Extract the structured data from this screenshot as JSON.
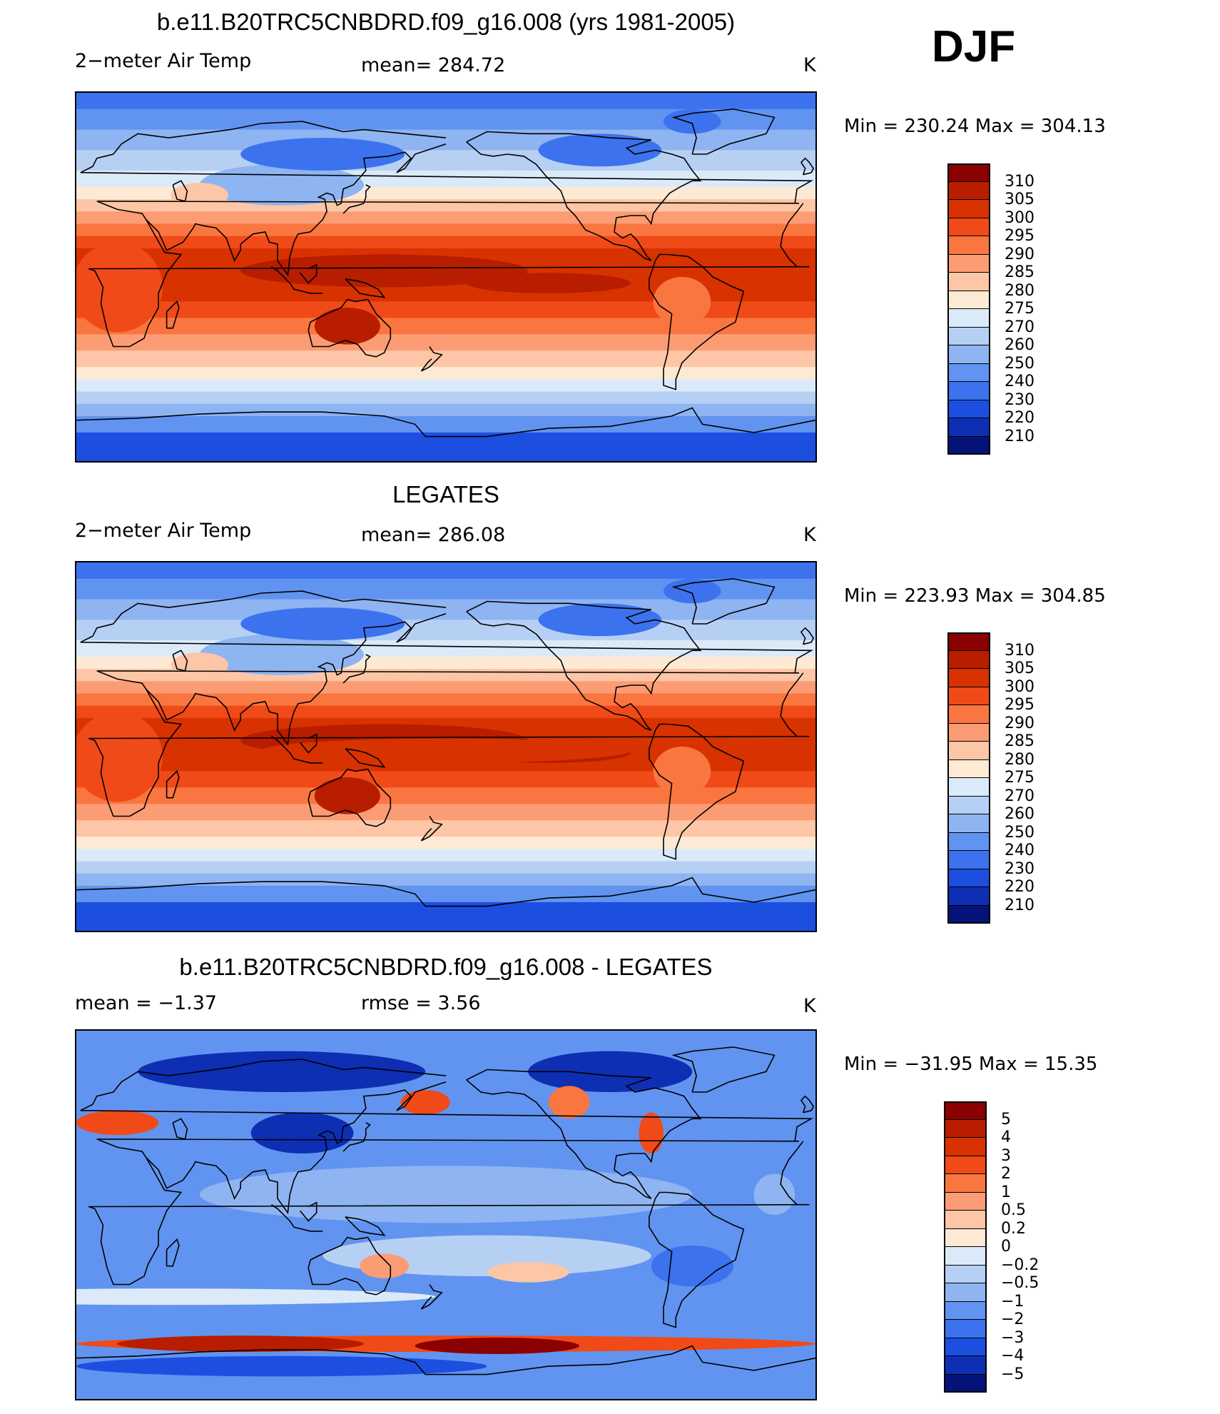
{
  "season_label": "DJF",
  "panels": [
    {
      "title": "b.e11.B20TRC5CNBDRD.f09_g16.008 (yrs 1981-2005)",
      "left_label": "2−meter Air Temp",
      "center_label": "mean=  284.72",
      "units": "K",
      "minmax": "Min  =  230.24  Max  =  304.13",
      "colors": [
        "#8b0000",
        "#b81d00",
        "#d83200",
        "#f04a18",
        "#fa7640",
        "#fc9c74",
        "#fdc6a6",
        "#fee9d4",
        "#dbeaf9",
        "#b6d0f4",
        "#8eb4f2",
        "#6194f0",
        "#3c72ee",
        "#1c4fe0",
        "#0e2fb4",
        "#04127a"
      ],
      "labels": [
        "310",
        "305",
        "300",
        "295",
        "290",
        "285",
        "280",
        "275",
        "270",
        "260",
        "250",
        "240",
        "230",
        "220",
        "210"
      ],
      "variant": "model"
    },
    {
      "title": "LEGATES",
      "left_label": "2−meter Air Temp",
      "center_label": "mean=  286.08",
      "units": "K",
      "minmax": "Min  =  223.93  Max  =  304.85",
      "colors": [
        "#8b0000",
        "#b81d00",
        "#d83200",
        "#f04a18",
        "#fa7640",
        "#fc9c74",
        "#fdc6a6",
        "#fee9d4",
        "#dbeaf9",
        "#b6d0f4",
        "#8eb4f2",
        "#6194f0",
        "#3c72ee",
        "#1c4fe0",
        "#0e2fb4",
        "#04127a"
      ],
      "labels": [
        "310",
        "305",
        "300",
        "295",
        "290",
        "285",
        "280",
        "275",
        "270",
        "260",
        "250",
        "240",
        "230",
        "220",
        "210"
      ],
      "variant": "obs"
    },
    {
      "title": "b.e11.B20TRC5CNBDRD.f09_g16.008 - LEGATES",
      "left_label": "mean  =    −1.37",
      "center_label": "rmse  =     3.56",
      "units": "K",
      "minmax": "Min  =  −31.95  Max  =    15.35",
      "colors": [
        "#8b0000",
        "#b81d00",
        "#d83200",
        "#f04a18",
        "#fa7640",
        "#fc9c74",
        "#fdc6a6",
        "#fee9d4",
        "#dbeaf9",
        "#b6d0f4",
        "#8eb4f2",
        "#6194f0",
        "#3c72ee",
        "#1c4fe0",
        "#0e2fb4",
        "#04127a"
      ],
      "labels": [
        "5",
        "4",
        "3",
        "2",
        "1",
        "0.5",
        "0.2",
        "0",
        "−0.2",
        "−0.5",
        "−1",
        "−2",
        "−3",
        "−4",
        "−5"
      ],
      "variant": "diff"
    }
  ]
}
